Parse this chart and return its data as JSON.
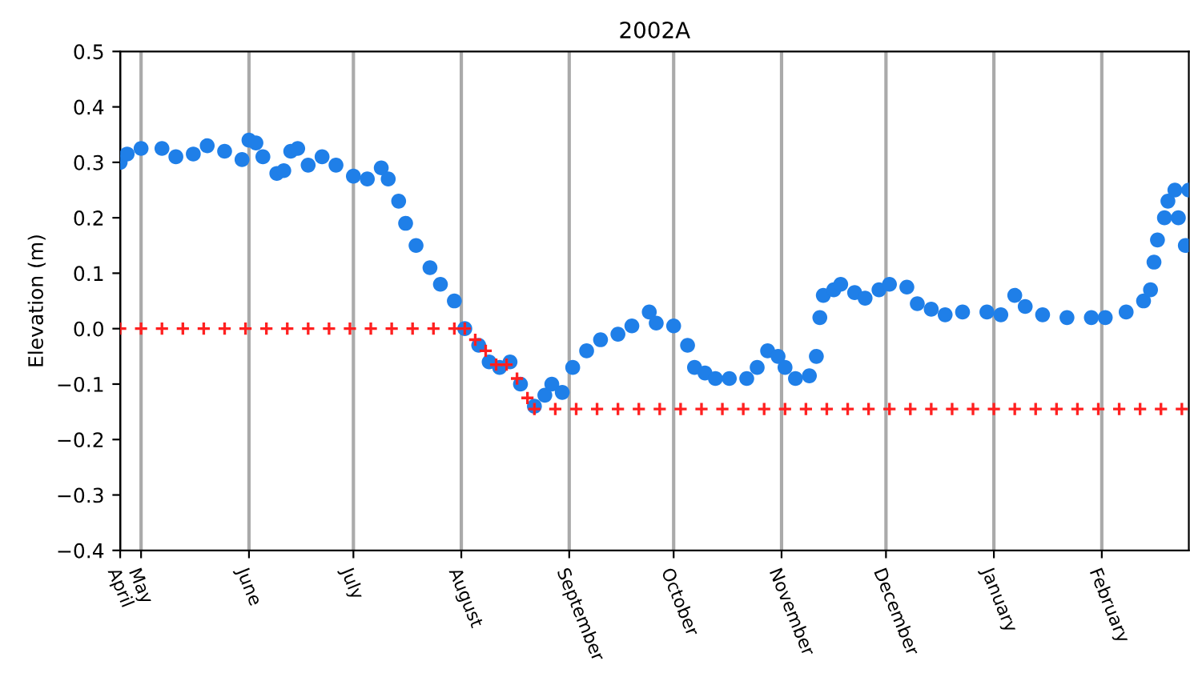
{
  "chart_data": {
    "type": "scatter",
    "title": "2002A",
    "ylabel": "Elevation (m)",
    "xlim": [
      "2002-04-25",
      "2003-02-26"
    ],
    "xticks": [
      {
        "value": "2002-04-25",
        "label": "April"
      },
      {
        "value": "2002-05-01",
        "label": "May"
      },
      {
        "value": "2002-06-01",
        "label": "June"
      },
      {
        "value": "2002-07-01",
        "label": "July"
      },
      {
        "value": "2002-08-01",
        "label": "August"
      },
      {
        "value": "2002-09-01",
        "label": "September"
      },
      {
        "value": "2002-10-01",
        "label": "October"
      },
      {
        "value": "2002-11-01",
        "label": "November"
      },
      {
        "value": "2002-12-01",
        "label": "December"
      },
      {
        "value": "2003-01-01",
        "label": "January"
      },
      {
        "value": "2003-02-01",
        "label": "February"
      }
    ],
    "ylim": [
      -0.4,
      0.5
    ],
    "yticks": [
      {
        "value": -0.4,
        "label": "−0.4"
      },
      {
        "value": -0.3,
        "label": "−0.3"
      },
      {
        "value": -0.2,
        "label": "−0.2"
      },
      {
        "value": -0.1,
        "label": "−0.1"
      },
      {
        "value": 0,
        "label": "0.0"
      },
      {
        "value": 0.1,
        "label": "0.1"
      },
      {
        "value": 0.2,
        "label": "0.2"
      },
      {
        "value": 0.3,
        "label": "0.3"
      },
      {
        "value": 0.4,
        "label": "0.4"
      },
      {
        "value": 0.5,
        "label": "0.5"
      }
    ],
    "grid": "x",
    "legend": false,
    "series": [
      {
        "color": "#1f7fe8",
        "marker": "circle",
        "x": [
          "2002-04-25",
          "2002-04-27",
          "2002-05-01",
          "2002-05-07",
          "2002-05-11",
          "2002-05-16",
          "2002-05-20",
          "2002-05-25",
          "2002-05-30",
          "2002-06-01",
          "2002-06-03",
          "2002-06-05",
          "2002-06-09",
          "2002-06-11",
          "2002-06-13",
          "2002-06-15",
          "2002-06-18",
          "2002-06-22",
          "2002-06-26",
          "2002-07-01",
          "2002-07-05",
          "2002-07-09",
          "2002-07-11",
          "2002-07-14",
          "2002-07-16",
          "2002-07-19",
          "2002-07-23",
          "2002-07-26",
          "2002-07-30",
          "2002-08-02",
          "2002-08-06",
          "2002-08-09",
          "2002-08-12",
          "2002-08-15",
          "2002-08-18",
          "2002-08-22",
          "2002-08-25",
          "2002-08-27",
          "2002-08-30",
          "2002-09-02",
          "2002-09-06",
          "2002-09-10",
          "2002-09-15",
          "2002-09-19",
          "2002-09-24",
          "2002-09-26",
          "2002-10-01",
          "2002-10-05",
          "2002-10-07",
          "2002-10-10",
          "2002-10-13",
          "2002-10-17",
          "2002-10-22",
          "2002-10-25",
          "2002-10-28",
          "2002-10-31",
          "2002-11-02",
          "2002-11-05",
          "2002-11-09",
          "2002-11-11",
          "2002-11-12",
          "2002-11-13",
          "2002-11-16",
          "2002-11-18",
          "2002-11-22",
          "2002-11-25",
          "2002-11-29",
          "2002-12-02",
          "2002-12-07",
          "2002-12-10",
          "2002-12-14",
          "2002-12-18",
          "2002-12-23",
          "2002-12-30",
          "2003-01-03",
          "2003-01-07",
          "2003-01-10",
          "2003-01-15",
          "2003-01-22",
          "2003-01-29",
          "2003-02-02",
          "2003-02-08",
          "2003-02-13",
          "2003-02-15",
          "2003-02-16",
          "2003-02-17",
          "2003-02-19",
          "2003-02-20",
          "2003-02-22",
          "2003-02-23",
          "2003-02-25",
          "2003-02-26"
        ],
        "values": [
          0.3,
          0.315,
          0.325,
          0.325,
          0.31,
          0.315,
          0.33,
          0.32,
          0.305,
          0.34,
          0.335,
          0.31,
          0.28,
          0.285,
          0.32,
          0.325,
          0.295,
          0.31,
          0.295,
          0.275,
          0.27,
          0.29,
          0.27,
          0.23,
          0.19,
          0.15,
          0.11,
          0.08,
          0.05,
          0.0,
          -0.03,
          -0.06,
          -0.07,
          -0.06,
          -0.1,
          -0.14,
          -0.12,
          -0.1,
          -0.115,
          -0.07,
          -0.04,
          -0.02,
          -0.01,
          0.005,
          0.03,
          0.01,
          0.005,
          -0.03,
          -0.07,
          -0.08,
          -0.09,
          -0.09,
          -0.09,
          -0.07,
          -0.04,
          -0.05,
          -0.07,
          -0.09,
          -0.085,
          -0.05,
          0.02,
          0.06,
          0.07,
          0.08,
          0.065,
          0.055,
          0.07,
          0.08,
          0.075,
          0.045,
          0.035,
          0.025,
          0.03,
          0.03,
          0.025,
          0.06,
          0.04,
          0.025,
          0.02,
          0.02,
          0.02,
          0.03,
          0.05,
          0.07,
          0.12,
          0.16,
          0.2,
          0.23,
          0.25,
          0.2,
          0.15,
          0.25
        ]
      },
      {
        "color": "#ff2020",
        "marker": "cross",
        "x": [
          "2002-04-25",
          "2002-05-01",
          "2002-05-07",
          "2002-05-13",
          "2002-05-19",
          "2002-05-25",
          "2002-05-31",
          "2002-06-06",
          "2002-06-12",
          "2002-06-18",
          "2002-06-24",
          "2002-06-30",
          "2002-07-06",
          "2002-07-12",
          "2002-07-18",
          "2002-07-24",
          "2002-07-30",
          "2002-08-02",
          "2002-08-05",
          "2002-08-08",
          "2002-08-11",
          "2002-08-14",
          "2002-08-17",
          "2002-08-20",
          "2002-08-22",
          "2002-08-28",
          "2002-09-03",
          "2002-09-09",
          "2002-09-15",
          "2002-09-21",
          "2002-09-27",
          "2002-10-03",
          "2002-10-09",
          "2002-10-15",
          "2002-10-21",
          "2002-10-27",
          "2002-11-02",
          "2002-11-08",
          "2002-11-14",
          "2002-11-20",
          "2002-11-26",
          "2002-12-02",
          "2002-12-08",
          "2002-12-14",
          "2002-12-20",
          "2002-12-26",
          "2003-01-01",
          "2003-01-07",
          "2003-01-13",
          "2003-01-19",
          "2003-01-25",
          "2003-01-31",
          "2003-02-06",
          "2003-02-12",
          "2003-02-18",
          "2003-02-24"
        ],
        "values": [
          0,
          0,
          0,
          0,
          0,
          0,
          0,
          0,
          0,
          0,
          0,
          0,
          0,
          0,
          0,
          0,
          0,
          0,
          -0.02,
          -0.04,
          -0.065,
          -0.065,
          -0.09,
          -0.125,
          -0.145,
          -0.145,
          -0.145,
          -0.145,
          -0.145,
          -0.145,
          -0.145,
          -0.145,
          -0.145,
          -0.145,
          -0.145,
          -0.145,
          -0.145,
          -0.145,
          -0.145,
          -0.145,
          -0.145,
          -0.145,
          -0.145,
          -0.145,
          -0.145,
          -0.145,
          -0.145,
          -0.145,
          -0.145,
          -0.145,
          -0.145,
          -0.145,
          -0.145,
          -0.145,
          -0.145,
          -0.145
        ]
      }
    ]
  }
}
